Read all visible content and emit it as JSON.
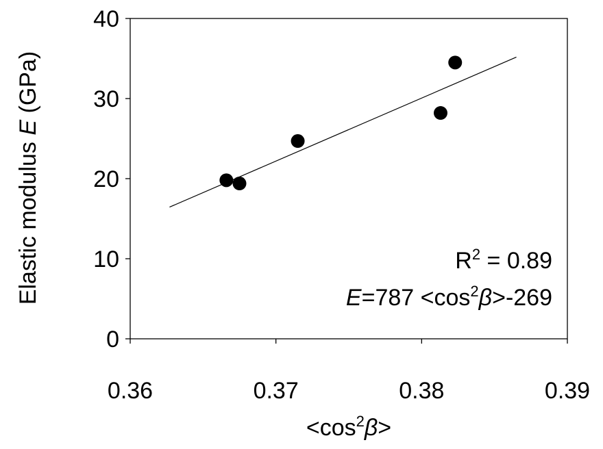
{
  "chart_data": {
    "type": "scatter",
    "x": [
      0.3666,
      0.3675,
      0.3715,
      0.3813,
      0.3823
    ],
    "y": [
      19.8,
      19.4,
      24.7,
      28.2,
      34.5
    ],
    "xlim": [
      0.36,
      0.39
    ],
    "ylim": [
      0,
      40
    ],
    "xticks": [
      "0.36",
      "0.37",
      "0.38",
      "0.39"
    ],
    "yticks": [
      "0",
      "10",
      "20",
      "30",
      "40"
    ],
    "xlabel": {
      "prefix": "<cos",
      "sup": "2",
      "var": "β",
      "suffix": ">"
    },
    "ylabel": {
      "prefix": "Elastic modulus ",
      "var": "E",
      "suffix": " (GPa)"
    },
    "fit": {
      "slope": 787,
      "intercept": -269,
      "x_start": 0.3627,
      "x_end": 0.3865
    },
    "annotations": {
      "r2": {
        "base": "R",
        "sup": "2",
        "rest": " = 0.89"
      },
      "equation": {
        "var": "E",
        "mid": "=787 <cos",
        "sup": "2",
        "beta": "β",
        "rest": ">-269"
      }
    },
    "grid": false,
    "legend": "none",
    "marker_color": "#000000",
    "line_color": "#000000"
  }
}
